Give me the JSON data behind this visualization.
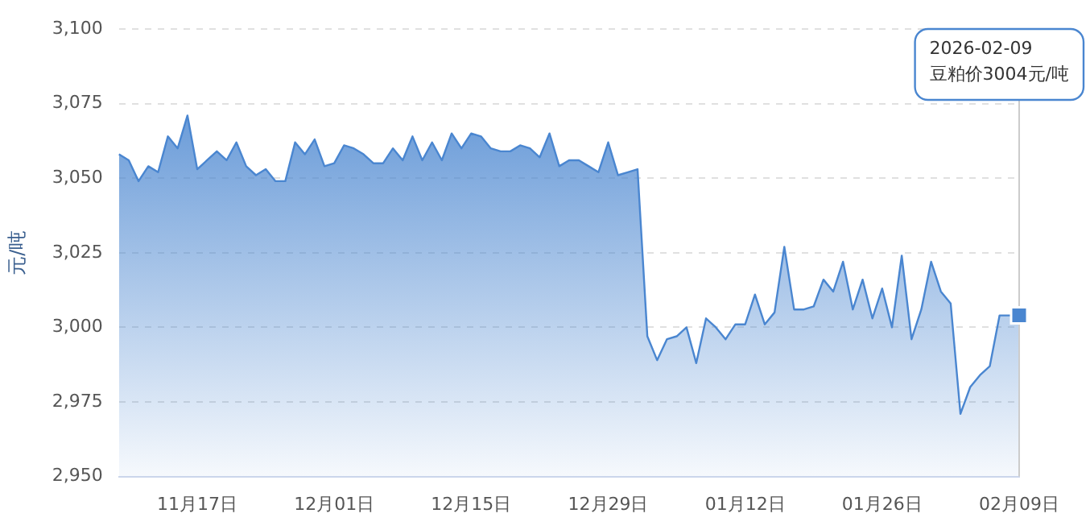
{
  "chart_data": {
    "type": "area",
    "ylabel": "元/吨",
    "categories": [
      null,
      null,
      null,
      null,
      null,
      null,
      null,
      null,
      "11月17日",
      null,
      null,
      null,
      null,
      null,
      null,
      null,
      null,
      null,
      null,
      null,
      null,
      null,
      "12月01日",
      null,
      null,
      null,
      null,
      null,
      null,
      null,
      null,
      null,
      null,
      null,
      null,
      null,
      "12月15日",
      null,
      null,
      null,
      null,
      null,
      null,
      null,
      null,
      null,
      null,
      null,
      null,
      null,
      "12月29日",
      null,
      null,
      null,
      null,
      null,
      null,
      null,
      null,
      null,
      null,
      null,
      null,
      null,
      "01月12日",
      null,
      null,
      null,
      null,
      null,
      null,
      null,
      null,
      null,
      null,
      null,
      null,
      null,
      "01月26日",
      null,
      null,
      null,
      null,
      null,
      null,
      null,
      null,
      null,
      null,
      null,
      null,
      null,
      "02月09日"
    ],
    "series": [
      {
        "color": "#4a86d0",
        "values": [
          3058,
          3056,
          3049,
          3054,
          3052,
          3064,
          3060,
          3071,
          3053,
          3056,
          3059,
          3056,
          3062,
          3054,
          3051,
          3053,
          3049,
          3049,
          3062,
          3058,
          3063,
          3054,
          3055,
          3061,
          3060,
          3058,
          3055,
          3055,
          3060,
          3056,
          3064,
          3056,
          3062,
          3056,
          3065,
          3060,
          3065,
          3064,
          3060,
          3059,
          3059,
          3061,
          3060,
          3057,
          3065,
          3054,
          3056,
          3056,
          3054,
          3052,
          3062,
          3051,
          3052,
          3053,
          2997,
          2989,
          2996,
          2997,
          3000,
          2988,
          3003,
          3000,
          2996,
          3001,
          3001,
          3011,
          3001,
          3005,
          3027,
          3006,
          3006,
          3007,
          3016,
          3012,
          3022,
          3006,
          3016,
          3003,
          3013,
          3000,
          3024,
          2996,
          3006,
          3022,
          3012,
          3008,
          2971,
          2980,
          2984,
          2987,
          3004,
          3004,
          3004
        ]
      }
    ],
    "ylim": [
      2950,
      3100
    ],
    "yticks": [
      {
        "value": 2950,
        "label": "2,950"
      },
      {
        "value": 2975,
        "label": "2,975"
      },
      {
        "value": 3000,
        "label": "3,000"
      },
      {
        "value": 3025,
        "label": "3,025"
      },
      {
        "value": 3050,
        "label": "3,050"
      },
      {
        "value": 3075,
        "label": "3,075"
      },
      {
        "value": 3100,
        "label": "3,100"
      }
    ],
    "grid": "y",
    "legend": false,
    "marker": "none",
    "annotations": [
      "2026-02-09\n豆粕价3004元/吨"
    ]
  }
}
